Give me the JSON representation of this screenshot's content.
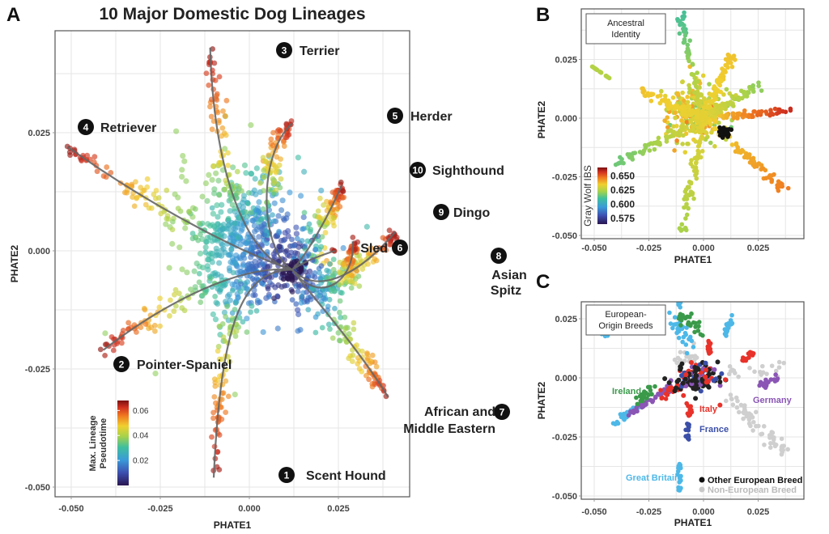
{
  "chart_data": [
    {
      "panel": "A",
      "type": "scatter",
      "title": "10 Major Domestic Dog Lineages",
      "xlabel": "PHATE1",
      "ylabel": "PHATE2",
      "xlim": [
        -0.055,
        0.045
      ],
      "ylim": [
        -0.053,
        0.042
      ],
      "xticks": [
        "-0.050",
        "-0.025",
        "0.000",
        "0.025"
      ],
      "xtick_values": [
        -0.05,
        -0.025,
        0.0,
        0.025
      ],
      "yticks": [
        "0.025",
        "0.000",
        "-0.025",
        "-0.050"
      ],
      "ytick_values": [
        0.025,
        0.0,
        -0.025,
        -0.05
      ],
      "grid": true,
      "colorbar": {
        "title_line1": "Max. Lineage",
        "title_line2": "Pseudotime",
        "ticks": [
          "0.06",
          "0.04",
          "0.02"
        ],
        "tick_values": [
          0.06,
          0.04,
          0.02
        ],
        "range": [
          0,
          0.068
        ],
        "placement": "bottom-left"
      },
      "origin": [
        0.012,
        -0.004
      ],
      "lineages": [
        {
          "id": "1",
          "name": "Scent Hound",
          "end": [
            -0.01,
            -0.048
          ]
        },
        {
          "id": "2",
          "name": "Pointer-Spaniel",
          "end": [
            -0.041,
            -0.021
          ]
        },
        {
          "id": "3",
          "name": "Terrier",
          "end": [
            -0.011,
            0.043
          ]
        },
        {
          "id": "4",
          "name": "Retriever",
          "end": [
            -0.051,
            0.022
          ]
        },
        {
          "id": "5",
          "name": "Herder",
          "end": [
            0.012,
            0.027
          ]
        },
        {
          "id": "6",
          "name": "Sled",
          "end": [
            0.024,
            0.0
          ]
        },
        {
          "id": "7",
          "name": "African and Middle Eastern",
          "name_line1": "African and",
          "name_line2": "Middle Eastern",
          "end": [
            0.039,
            -0.031
          ]
        },
        {
          "id": "8",
          "name": "Asian Spitz",
          "name_line1": "Asian",
          "name_line2": "Spitz",
          "end": [
            0.041,
            0.004
          ]
        },
        {
          "id": "9",
          "name": "Dingo",
          "end": [
            0.029,
            0.002
          ]
        },
        {
          "id": "10",
          "name": "Sighthound",
          "end": [
            0.026,
            0.014
          ]
        }
      ]
    },
    {
      "panel": "B",
      "type": "scatter",
      "box_label_line1": "Ancestral",
      "box_label_line2": "Identity",
      "xlabel": "PHATE1",
      "ylabel": "PHATE2",
      "xlim": [
        -0.056,
        0.043
      ],
      "ylim": [
        -0.052,
        0.046
      ],
      "xticks": [
        "-0.050",
        "-0.025",
        "0.000",
        "0.025"
      ],
      "xtick_values": [
        -0.05,
        -0.025,
        0.0,
        0.025
      ],
      "yticks": [
        "0.025",
        "0.000",
        "-0.025",
        "-0.050"
      ],
      "ytick_values": [
        0.025,
        0.0,
        -0.025,
        -0.05
      ],
      "grid": true,
      "colorbar": {
        "title": "Gray Wolf IBS",
        "ticks": [
          "0.650",
          "0.625",
          "0.600",
          "0.575"
        ],
        "tick_values": [
          0.65,
          0.625,
          0.6,
          0.575
        ],
        "range": [
          0.565,
          0.665
        ],
        "placement": "bottom-left"
      }
    },
    {
      "panel": "C",
      "type": "scatter",
      "box_label_line1": "European-",
      "box_label_line2": "Origin Breeds",
      "xlabel": "PHATE1",
      "ylabel": "PHATE2",
      "xlim": [
        -0.056,
        0.043
      ],
      "ylim": [
        -0.052,
        0.046
      ],
      "xticks": [
        "-0.050",
        "-0.025",
        "0.000",
        "0.025"
      ],
      "xtick_values": [
        -0.05,
        -0.025,
        0.0,
        0.025
      ],
      "yticks": [
        "0.025",
        "0.000",
        "-0.025",
        "-0.050"
      ],
      "ytick_values": [
        0.025,
        0.0,
        -0.025,
        -0.05
      ],
      "grid": true,
      "groups": [
        {
          "name": "Ireland",
          "color": "#3a9a4a"
        },
        {
          "name": "Italy",
          "color": "#e8322a"
        },
        {
          "name": "France",
          "color": "#3b4fa8"
        },
        {
          "name": "Germany",
          "color": "#8a55b5"
        },
        {
          "name": "Great Britain",
          "color": "#4db8e8"
        }
      ],
      "legend": [
        {
          "name": "Other European Breed",
          "color": "#111111"
        },
        {
          "name": "Non-European Breed",
          "color": "#c8c8c8"
        }
      ],
      "legend_placement": "bottom-right"
    }
  ],
  "panels": {
    "a": "A",
    "b": "B",
    "c": "C"
  }
}
